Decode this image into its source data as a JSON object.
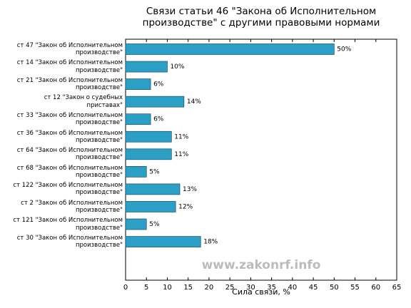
{
  "chart_data": {
    "type": "hbar",
    "title": "Связи статьи 46 \"Закона об Исполнительном\nпроизводстве\" с другими правовыми нормами",
    "categories": [
      "ст 47 \"Закон об Исполнительном\nпроизводстве\"",
      "ст 14 \"Закон об Исполнительном\nпроизводстве\"",
      "ст 21 \"Закон об Исполнительном\nпроизводстве\"",
      "ст 12 \"Закон о судебных\nприставах\"",
      "ст 33 \"Закон об Исполнительном\nпроизводстве\"",
      "ст 36 \"Закон об Исполнительном\nпроизводстве\"",
      "ст 64 \"Закон об Исполнительном\nпроизводстве\"",
      "ст 68 \"Закон об Исполнительном\nпроизводстве\"",
      "ст 122 \"Закон об Исполнительном\nпроизводстве\"",
      "ст 2 \"Закон об Исполнительном\nпроизводстве\"",
      "ст 121 \"Закон об Исполнительном\nпроизводстве\"",
      "ст 30 \"Закон об Исполнительном\nпроизводстве\""
    ],
    "values": [
      50,
      10,
      6,
      14,
      6,
      11,
      11,
      5,
      13,
      12,
      5,
      18
    ],
    "value_labels": [
      "50%",
      "10%",
      "6%",
      "14%",
      "6%",
      "11%",
      "11%",
      "5%",
      "13%",
      "12%",
      "5%",
      "18%"
    ],
    "color": "#2b9fc6",
    "xlabel": "Сила связи, %",
    "xlim": [
      0,
      65
    ],
    "xticks": [
      0,
      5,
      10,
      15,
      20,
      25,
      30,
      35,
      40,
      45,
      50,
      55,
      60,
      65
    ],
    "watermark": "www.zakonrf.info"
  }
}
